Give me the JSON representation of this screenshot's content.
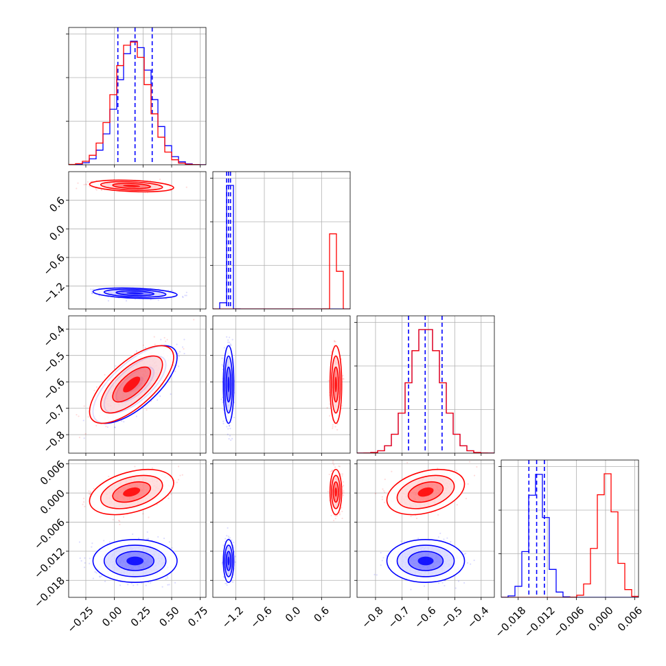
{
  "chart_data": {
    "type": "corner",
    "colors": {
      "blue": "#0000ff",
      "red": "#ff0000",
      "grid": "#b0b0b0"
    },
    "n_params": 4,
    "param_ranges": [
      [
        -0.4,
        0.8
      ],
      [
        -1.68,
        1.2
      ],
      [
        -0.87,
        -0.35
      ],
      [
        -0.0215,
        0.0068
      ]
    ],
    "tick_labels": [
      [
        "−0.25",
        "0.00",
        "0.25",
        "0.50",
        "0.75"
      ],
      [
        "−1.2",
        "−0.6",
        "0.0",
        "0.6"
      ],
      [
        "−0.8",
        "−0.7",
        "−0.6",
        "−0.5",
        "−0.4"
      ],
      [
        "−0.018",
        "−0.012",
        "−0.006",
        "0.000",
        "0.006"
      ]
    ],
    "tick_values": [
      [
        -0.25,
        0.0,
        0.25,
        0.5,
        0.75
      ],
      [
        -1.2,
        -0.6,
        0.0,
        0.6
      ],
      [
        -0.8,
        -0.7,
        -0.6,
        -0.5,
        -0.4
      ],
      [
        -0.018,
        -0.012,
        -0.006,
        0.0,
        0.006
      ]
    ],
    "series": [
      {
        "color": "blue",
        "mean": [
          0.18,
          -1.35,
          -0.61,
          -0.014
        ],
        "sd": [
          0.15,
          0.045,
          0.06,
          0.0018
        ],
        "corr": [
          [
            1,
            -0.3,
            0.7,
            0
          ],
          [
            -0.3,
            1,
            0,
            0
          ],
          [
            0.7,
            0,
            1,
            0
          ],
          [
            0,
            0,
            0,
            1
          ]
        ],
        "quantile_lines": [
          [
            0.03,
            0.18,
            0.33
          ],
          [
            -1.39,
            -1.35,
            -1.31
          ],
          [
            -0.675,
            -0.612,
            -0.548
          ],
          [
            -0.0158,
            -0.0142,
            -0.0126
          ]
        ]
      },
      {
        "color": "red",
        "mean": [
          0.15,
          0.9,
          -0.61,
          0.0002
        ],
        "sd": [
          0.15,
          0.05,
          0.06,
          0.0019
        ],
        "corr": [
          [
            1,
            -0.3,
            0.7,
            0.4
          ],
          [
            -0.3,
            1,
            0,
            0
          ],
          [
            0.7,
            0,
            1,
            0.35
          ],
          [
            0.4,
            0,
            0.35,
            1
          ]
        ],
        "quantile_lines": null
      }
    ],
    "grid": true
  }
}
